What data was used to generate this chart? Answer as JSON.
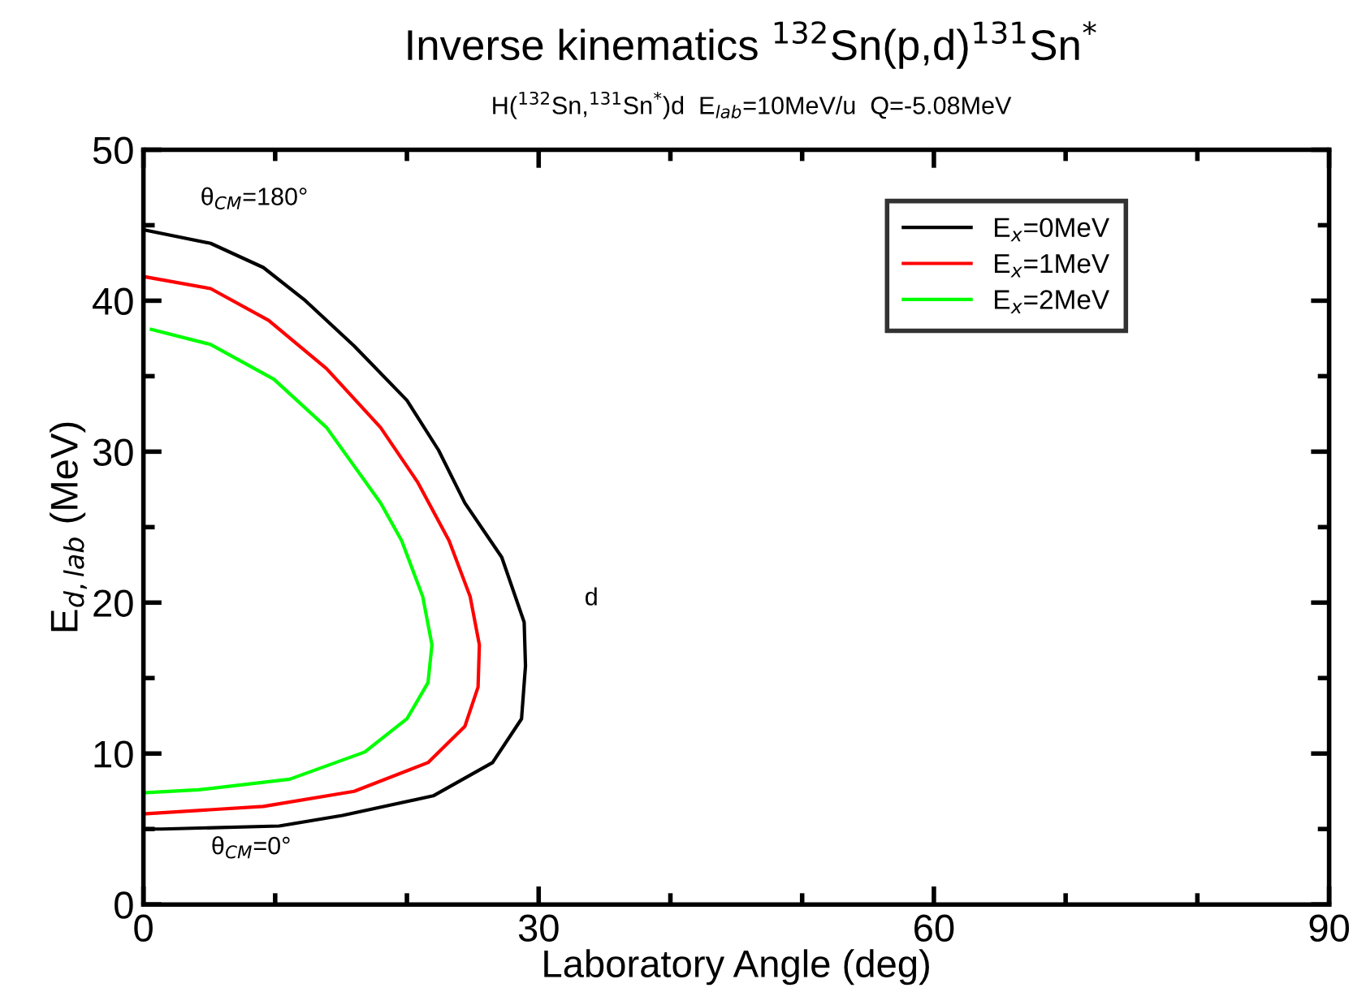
{
  "chart_data": {
    "type": "line",
    "title": "Inverse kinematics $^{132}$Sn(p,d)$^{131}$Sn$^{*}$",
    "subtitle": "H($^{132}$Sn,$^{131}$Sn$^{*}$)d  E$_{lab}$=10MeV/u  Q=-5.08MeV",
    "xlabel": "Laboratory Angle (deg)",
    "ylabel": "E$_{d,lab}$ (MeV)",
    "xlim": [
      0,
      90
    ],
    "xticks": [
      0,
      {
        "value": 10,
        "label": null
      },
      {
        "value": 20,
        "label": null
      },
      30,
      {
        "value": 40,
        "label": null
      },
      {
        "value": 50,
        "label": null
      },
      60,
      {
        "value": 70,
        "label": null
      },
      {
        "value": 80,
        "label": null
      },
      90
    ],
    "ylim": [
      0,
      50
    ],
    "yticks": [
      0,
      {
        "value": 5,
        "label": null
      },
      10,
      {
        "value": 15,
        "label": null
      },
      20,
      {
        "value": 25,
        "label": null
      },
      30,
      {
        "value": 35,
        "label": null
      },
      40,
      {
        "value": 45,
        "label": null
      },
      50
    ],
    "grid": false,
    "legend": "top right",
    "line_style": "solid",
    "series": [
      {
        "name": "E$_{x}$=0MeV",
        "color": "#000000",
        "x": [
          0,
          5.1,
          9.1,
          12.3,
          16.0,
          20.0,
          22.4,
          24.4,
          27.2,
          28.9,
          29.0,
          28.7,
          26.5,
          22.0,
          15.1,
          10.3,
          1.4,
          0
        ],
        "values": [
          44.7,
          43.8,
          42.2,
          40.0,
          37.0,
          33.4,
          30.1,
          26.6,
          23.0,
          18.7,
          15.8,
          12.3,
          9.4,
          7.2,
          5.9,
          5.2,
          5.0,
          5.0
        ]
      },
      {
        "name": "E$_{x}$=1MeV",
        "color": "#ff0000",
        "x": [
          0,
          5.1,
          9.5,
          13.9,
          18.0,
          20.8,
          23.2,
          24.8,
          25.5,
          25.4,
          24.4,
          21.6,
          16.0,
          9.1,
          0
        ],
        "values": [
          41.6,
          40.8,
          38.7,
          35.5,
          31.6,
          28.0,
          24.1,
          20.4,
          17.2,
          14.4,
          11.8,
          9.4,
          7.5,
          6.5,
          6.0
        ]
      },
      {
        "name": "E$_{x}$=2MeV",
        "color": "#00ff00",
        "x": [
          0.6,
          5.1,
          9.9,
          13.9,
          18.0,
          19.6,
          21.2,
          21.9,
          21.6,
          20.0,
          16.8,
          11.1,
          4.2,
          0
        ],
        "values": [
          38.1,
          37.1,
          34.8,
          31.6,
          26.6,
          24.1,
          20.4,
          17.2,
          14.7,
          12.3,
          10.1,
          8.3,
          7.6,
          7.4
        ]
      }
    ],
    "annotations": [
      "θ$_{CM}$=180°",
      "θ$_{CM}$=0°",
      "d"
    ]
  }
}
